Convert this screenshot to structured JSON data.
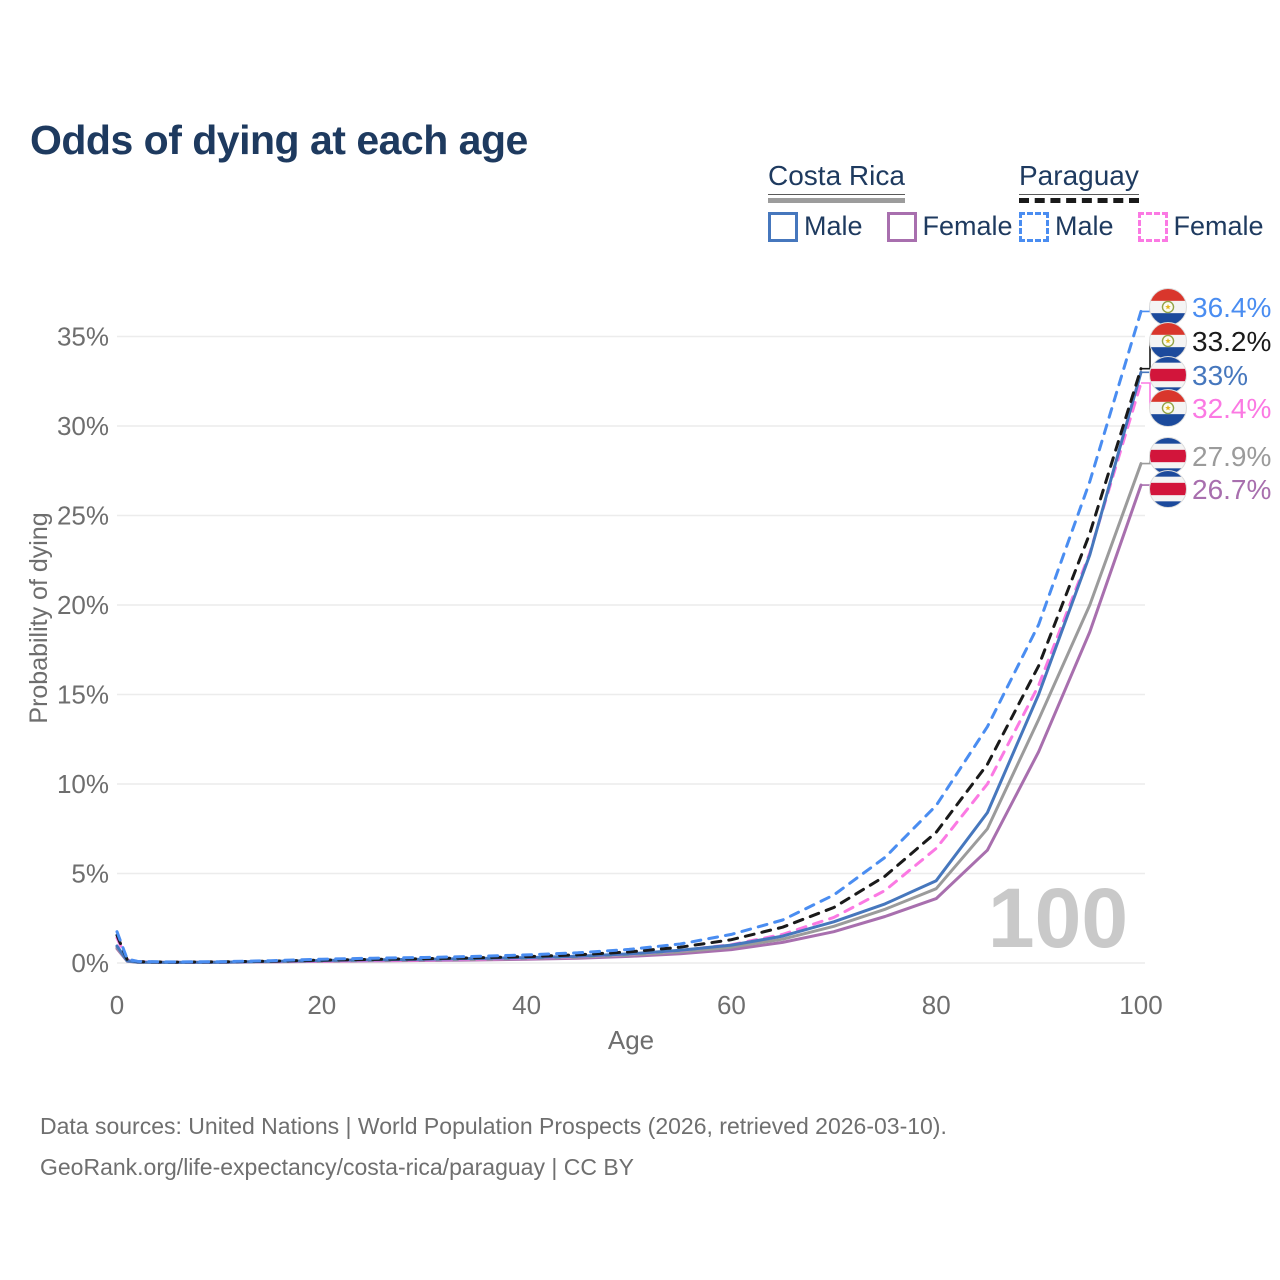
{
  "title": "Odds of dying at each age",
  "watermark": "100",
  "legend": {
    "groups": [
      {
        "name": "Costa Rica",
        "line_style": "solid",
        "line_color": "#9c9c9c",
        "items": [
          {
            "label": "Male",
            "color": "#4677bd"
          },
          {
            "label": "Female",
            "color": "#a86fae"
          }
        ]
      },
      {
        "name": "Paraguay",
        "line_style": "dashed",
        "line_color": "#1a1a1a",
        "items": [
          {
            "label": "Male",
            "color": "#4a8df1"
          },
          {
            "label": "Female",
            "color": "#fb79e3"
          }
        ]
      }
    ]
  },
  "chart_data": {
    "type": "line",
    "title": "Odds of dying at each age",
    "xlabel": "Age",
    "ylabel": "Probability of dying",
    "xlim": [
      0,
      100
    ],
    "ylim_pct": [
      0,
      37
    ],
    "x_ticks": [
      0,
      20,
      40,
      60,
      80,
      100
    ],
    "y_ticks": [
      "0%",
      "5%",
      "10%",
      "15%",
      "20%",
      "25%",
      "30%",
      "35%"
    ],
    "grid": "horizontal",
    "legend_position": "top-right",
    "ages": [
      0,
      1,
      2,
      5,
      10,
      15,
      20,
      25,
      30,
      35,
      40,
      45,
      50,
      55,
      60,
      65,
      70,
      75,
      80,
      85,
      90,
      95,
      100
    ],
    "series": [
      {
        "name": "Paraguay Male",
        "country": "Paraguay",
        "sex": "Male",
        "style": "dashed",
        "color": "#4a8df1",
        "flag": "paraguay",
        "end_label": "36.4%",
        "values_pct": [
          1.75,
          0.22,
          0.09,
          0.06,
          0.07,
          0.13,
          0.21,
          0.27,
          0.31,
          0.37,
          0.45,
          0.57,
          0.76,
          1.06,
          1.6,
          2.4,
          3.8,
          5.9,
          8.8,
          13.2,
          18.9,
          26.9,
          36.4
        ]
      },
      {
        "name": "Paraguay",
        "country": "Paraguay",
        "sex": "Both",
        "style": "dashed",
        "color": "#1a1a1a",
        "flag": "paraguay",
        "end_label": "33.2%",
        "values_pct": [
          1.55,
          0.19,
          0.08,
          0.05,
          0.06,
          0.1,
          0.16,
          0.2,
          0.24,
          0.29,
          0.36,
          0.46,
          0.62,
          0.88,
          1.3,
          2.0,
          3.1,
          4.85,
          7.3,
          11.1,
          16.6,
          24.0,
          33.2
        ]
      },
      {
        "name": "Costa Rica Male",
        "country": "Costa Rica",
        "sex": "Male",
        "style": "solid",
        "color": "#4677bd",
        "flag": "costa-rica",
        "end_label": "33%",
        "values_pct": [
          0.95,
          0.12,
          0.05,
          0.035,
          0.045,
          0.09,
          0.14,
          0.18,
          0.21,
          0.25,
          0.3,
          0.38,
          0.51,
          0.71,
          1.0,
          1.5,
          2.3,
          3.3,
          4.6,
          8.4,
          15.0,
          22.8,
          33.0
        ]
      },
      {
        "name": "Paraguay Female",
        "country": "Paraguay",
        "sex": "Female",
        "style": "dashed",
        "color": "#fb79e3",
        "flag": "paraguay",
        "end_label": "32.4%",
        "values_pct": [
          1.4,
          0.17,
          0.07,
          0.04,
          0.05,
          0.08,
          0.11,
          0.14,
          0.17,
          0.21,
          0.27,
          0.36,
          0.49,
          0.7,
          1.02,
          1.6,
          2.55,
          4.05,
          6.4,
          10.0,
          15.5,
          22.9,
          32.4
        ]
      },
      {
        "name": "Costa Rica",
        "country": "Costa Rica",
        "sex": "Both",
        "style": "solid",
        "color": "#9b9b9b",
        "flag": "costa-rica",
        "end_label": "27.9%",
        "values_pct": [
          0.88,
          0.11,
          0.045,
          0.03,
          0.04,
          0.075,
          0.12,
          0.15,
          0.18,
          0.21,
          0.26,
          0.33,
          0.44,
          0.62,
          0.88,
          1.33,
          2.05,
          3.0,
          4.15,
          7.5,
          13.6,
          20.0,
          27.9
        ]
      },
      {
        "name": "Costa Rica Female",
        "country": "Costa Rica",
        "sex": "Female",
        "style": "solid",
        "color": "#a86fae",
        "flag": "costa-rica",
        "end_label": "26.7%",
        "values_pct": [
          0.8,
          0.1,
          0.04,
          0.03,
          0.035,
          0.06,
          0.09,
          0.12,
          0.14,
          0.17,
          0.21,
          0.27,
          0.37,
          0.52,
          0.75,
          1.15,
          1.75,
          2.6,
          3.6,
          6.3,
          11.8,
          18.5,
          26.7
        ]
      }
    ]
  },
  "footer": {
    "line1": "Data sources: United Nations | World Population Prospects (2026, retrieved 2026-03-10).",
    "line2": "GeoRank.org/life-expectancy/costa-rica/paraguay | CC BY"
  }
}
